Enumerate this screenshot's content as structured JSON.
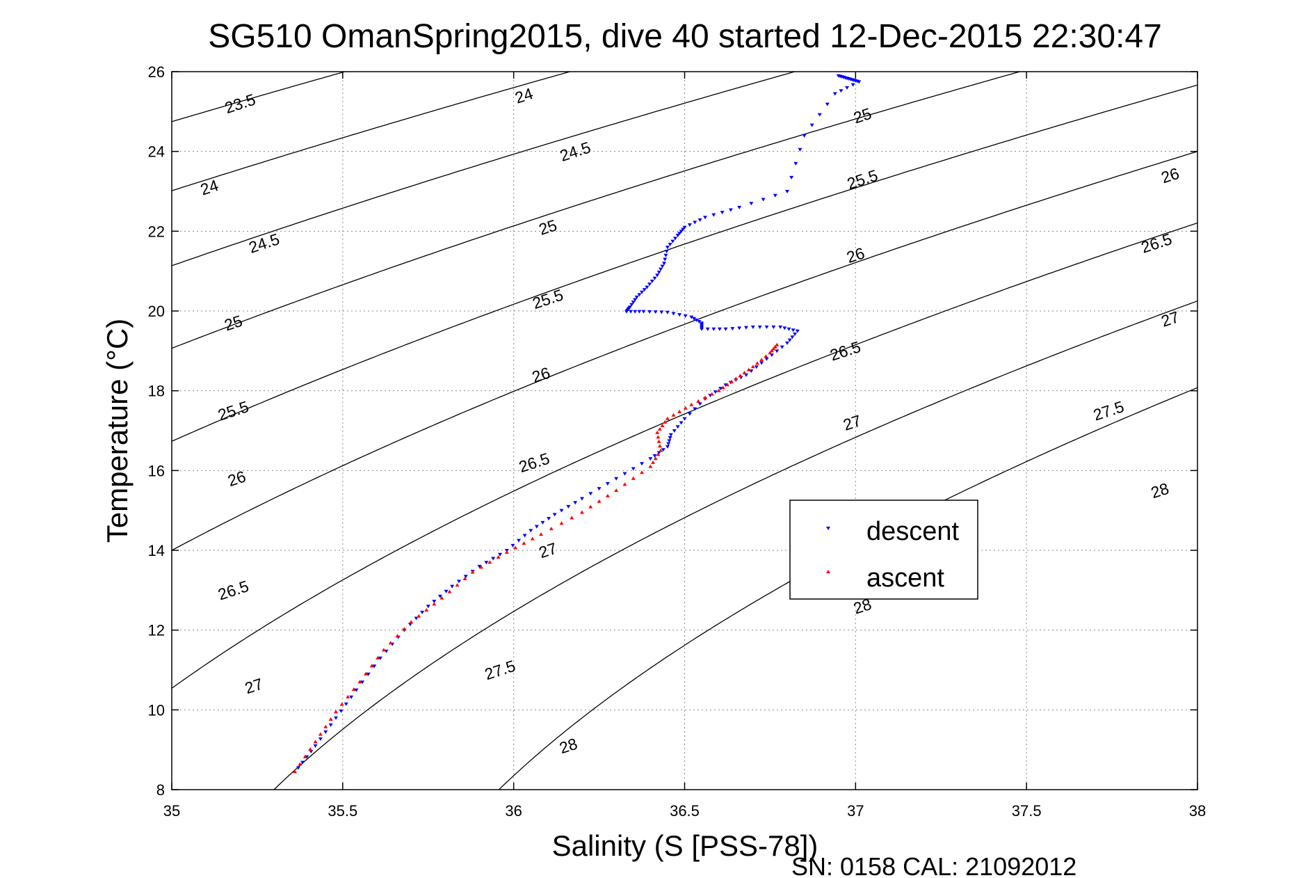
{
  "chart_data": {
    "type": "scatter",
    "title": "SG510 OmanSpring2015, dive 40 started 12-Dec-2015 22:30:47",
    "xlabel": "Salinity (S [PSS-78])",
    "ylabel": "Temperature (°C)",
    "xlim": [
      35,
      38
    ],
    "ylim": [
      8,
      26
    ],
    "xticks": [
      35,
      35.5,
      36,
      36.5,
      37,
      37.5,
      38
    ],
    "xtick_labels": [
      "35",
      "35.5",
      "36",
      "36.5",
      "37",
      "37.5",
      "38"
    ],
    "yticks": [
      8,
      10,
      12,
      14,
      16,
      18,
      20,
      22,
      24,
      26
    ],
    "ytick_labels": [
      "8",
      "10",
      "12",
      "14",
      "16",
      "18",
      "20",
      "22",
      "24",
      "26"
    ],
    "grid": true,
    "legend_position": "right-center",
    "footer": "SN: 0158  CAL: 21092012",
    "contours": {
      "quantity": "potential density anomaly",
      "levels": [
        23.5,
        24,
        24.5,
        25,
        25.5,
        26,
        26.5,
        27,
        27.5,
        28
      ],
      "color": "#000000",
      "labels": [
        {
          "level": 23.5,
          "text": "23.5",
          "s": 35.2,
          "t": 25.2
        },
        {
          "level": 24,
          "text": "24",
          "s": 36.03,
          "t": 25.4
        },
        {
          "level": 24,
          "text": "24",
          "s": 35.11,
          "t": 23.1
        },
        {
          "level": 24.5,
          "text": "24.5",
          "s": 36.18,
          "t": 24.0
        },
        {
          "level": 24.5,
          "text": "24.5",
          "s": 35.27,
          "t": 21.7
        },
        {
          "level": 25,
          "text": "25",
          "s": 37.02,
          "t": 24.9
        },
        {
          "level": 25,
          "text": "25",
          "s": 36.1,
          "t": 22.1
        },
        {
          "level": 25,
          "text": "25",
          "s": 35.18,
          "t": 19.7
        },
        {
          "level": 25.5,
          "text": "25.5",
          "s": 37.02,
          "t": 23.3
        },
        {
          "level": 25.5,
          "text": "25.5",
          "s": 36.1,
          "t": 20.3
        },
        {
          "level": 25.5,
          "text": "25.5",
          "s": 35.18,
          "t": 17.5
        },
        {
          "level": 26,
          "text": "26",
          "s": 37.92,
          "t": 23.4
        },
        {
          "level": 26,
          "text": "26",
          "s": 37.0,
          "t": 21.4
        },
        {
          "level": 26,
          "text": "26",
          "s": 36.08,
          "t": 18.4
        },
        {
          "level": 26,
          "text": "26",
          "s": 35.19,
          "t": 15.8
        },
        {
          "level": 26.5,
          "text": "26.5",
          "s": 37.88,
          "t": 21.7
        },
        {
          "level": 26.5,
          "text": "26.5",
          "s": 36.97,
          "t": 19.0
        },
        {
          "level": 26.5,
          "text": "26.5",
          "s": 36.06,
          "t": 16.2
        },
        {
          "level": 26.5,
          "text": "26.5",
          "s": 35.18,
          "t": 13.0
        },
        {
          "level": 27,
          "text": "27",
          "s": 37.92,
          "t": 19.8
        },
        {
          "level": 27,
          "text": "27",
          "s": 36.99,
          "t": 17.2
        },
        {
          "level": 27,
          "text": "27",
          "s": 36.1,
          "t": 14.0
        },
        {
          "level": 27,
          "text": "27",
          "s": 35.24,
          "t": 10.6
        },
        {
          "level": 27.5,
          "text": "27.5",
          "s": 37.74,
          "t": 17.5
        },
        {
          "level": 27.5,
          "text": "27.5",
          "s": 35.96,
          "t": 11.0
        },
        {
          "level": 28,
          "text": "28",
          "s": 37.89,
          "t": 15.5
        },
        {
          "level": 28,
          "text": "28",
          "s": 37.02,
          "t": 12.6
        },
        {
          "level": 28,
          "text": "28",
          "s": 36.16,
          "t": 9.1
        }
      ]
    },
    "series": [
      {
        "name": "descent",
        "color": "#0000ff",
        "marker": "triangle-down",
        "points": [
          [
            36.95,
            25.9
          ],
          [
            36.97,
            25.85
          ],
          [
            36.99,
            25.8
          ],
          [
            37.01,
            25.75
          ],
          [
            36.94,
            25.45
          ],
          [
            36.85,
            24.4
          ],
          [
            36.8,
            23.0
          ],
          [
            36.66,
            22.6
          ],
          [
            36.56,
            22.35
          ],
          [
            36.5,
            22.1
          ],
          [
            36.48,
            21.9
          ],
          [
            36.45,
            21.6
          ],
          [
            36.44,
            21.2
          ],
          [
            36.42,
            20.9
          ],
          [
            36.39,
            20.6
          ],
          [
            36.36,
            20.35
          ],
          [
            36.34,
            20.1
          ],
          [
            36.33,
            19.99
          ],
          [
            36.38,
            19.99
          ],
          [
            36.45,
            19.97
          ],
          [
            36.52,
            19.85
          ],
          [
            36.55,
            19.7
          ],
          [
            36.55,
            19.55
          ],
          [
            36.62,
            19.55
          ],
          [
            36.7,
            19.6
          ],
          [
            36.78,
            19.6
          ],
          [
            36.83,
            19.5
          ],
          [
            36.8,
            19.2
          ],
          [
            36.74,
            18.8
          ],
          [
            36.68,
            18.4
          ],
          [
            36.62,
            18.15
          ],
          [
            36.56,
            17.8
          ],
          [
            36.5,
            17.3
          ],
          [
            36.46,
            16.9
          ],
          [
            36.45,
            16.6
          ],
          [
            36.4,
            16.3
          ],
          [
            36.3,
            15.8
          ],
          [
            36.2,
            15.3
          ],
          [
            36.12,
            14.9
          ],
          [
            36.05,
            14.5
          ],
          [
            35.98,
            14.0
          ],
          [
            35.9,
            13.6
          ],
          [
            35.82,
            13.1
          ],
          [
            35.75,
            12.6
          ],
          [
            35.68,
            12.0
          ],
          [
            35.61,
            11.3
          ],
          [
            35.54,
            10.5
          ],
          [
            35.48,
            9.8
          ],
          [
            35.42,
            9.1
          ],
          [
            35.37,
            8.55
          ]
        ]
      },
      {
        "name": "ascent",
        "color": "#ff0000",
        "marker": "triangle-up",
        "points": [
          [
            35.36,
            8.45
          ],
          [
            35.42,
            9.2
          ],
          [
            35.48,
            9.95
          ],
          [
            35.55,
            10.7
          ],
          [
            35.62,
            11.5
          ],
          [
            35.7,
            12.2
          ],
          [
            35.79,
            12.8
          ],
          [
            35.88,
            13.45
          ],
          [
            35.98,
            13.95
          ],
          [
            36.08,
            14.4
          ],
          [
            36.2,
            14.95
          ],
          [
            36.3,
            15.5
          ],
          [
            36.4,
            16.1
          ],
          [
            36.43,
            16.5
          ],
          [
            36.42,
            16.95
          ],
          [
            36.45,
            17.3
          ],
          [
            36.52,
            17.65
          ],
          [
            36.6,
            18.0
          ],
          [
            36.65,
            18.3
          ],
          [
            36.7,
            18.6
          ],
          [
            36.75,
            18.95
          ],
          [
            36.77,
            19.15
          ]
        ]
      }
    ]
  }
}
